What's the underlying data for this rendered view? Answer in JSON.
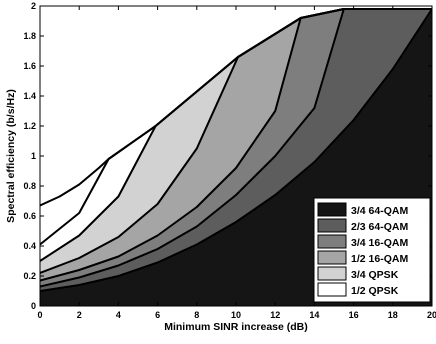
{
  "chart_data": {
    "type": "area",
    "xlabel": "Minimum SINR increase (dB)",
    "ylabel": "Spectral efficiency (b/s/Hz)",
    "xlim": [
      0,
      20
    ],
    "ylim": [
      0,
      2
    ],
    "x_ticks": [
      0,
      2,
      4,
      6,
      8,
      10,
      12,
      14,
      16,
      18,
      20
    ],
    "y_ticks": [
      0,
      0.2,
      0.4,
      0.6,
      0.8,
      1,
      1.2,
      1.4,
      1.6,
      1.8,
      2
    ],
    "grid": false,
    "legend_position": "bottom-right",
    "series": [
      {
        "name": "3/4 64-QAM",
        "color": "#151515",
        "points": [
          [
            0,
            0.1
          ],
          [
            2,
            0.14
          ],
          [
            4,
            0.2
          ],
          [
            6,
            0.29
          ],
          [
            8,
            0.41
          ],
          [
            10,
            0.56
          ],
          [
            12,
            0.74
          ],
          [
            14,
            0.96
          ],
          [
            16,
            1.24
          ],
          [
            18,
            1.58
          ],
          [
            20,
            1.98
          ]
        ]
      },
      {
        "name": "2/3 64-QAM",
        "color": "#5d5d5d",
        "points": [
          [
            0,
            0.13
          ],
          [
            2,
            0.19
          ],
          [
            4,
            0.27
          ],
          [
            6,
            0.38
          ],
          [
            8,
            0.53
          ],
          [
            10,
            0.74
          ],
          [
            12,
            1.0
          ],
          [
            14,
            1.32
          ],
          [
            15.5,
            1.98
          ],
          [
            20,
            1.98
          ]
        ]
      },
      {
        "name": "3/4 16-QAM",
        "color": "#7e7e7e",
        "points": [
          [
            0,
            0.17
          ],
          [
            2,
            0.24
          ],
          [
            4,
            0.33
          ],
          [
            6,
            0.47
          ],
          [
            8,
            0.66
          ],
          [
            10,
            0.92
          ],
          [
            12,
            1.3
          ],
          [
            13.3,
            1.92
          ],
          [
            15.5,
            1.98
          ],
          [
            20,
            1.98
          ]
        ]
      },
      {
        "name": "1/2 16-QAM",
        "color": "#a5a5a5",
        "points": [
          [
            0,
            0.22
          ],
          [
            2,
            0.32
          ],
          [
            4,
            0.46
          ],
          [
            6,
            0.68
          ],
          [
            8,
            1.05
          ],
          [
            10.1,
            1.66
          ],
          [
            13.3,
            1.92
          ],
          [
            15.5,
            1.98
          ],
          [
            20,
            1.98
          ]
        ]
      },
      {
        "name": "3/4 QPSK",
        "color": "#d2d2d2",
        "points": [
          [
            0,
            0.3
          ],
          [
            2,
            0.47
          ],
          [
            4,
            0.73
          ],
          [
            5.9,
            1.2
          ],
          [
            10.1,
            1.66
          ],
          [
            13.3,
            1.92
          ],
          [
            15.5,
            1.98
          ],
          [
            20,
            1.98
          ]
        ]
      },
      {
        "name": "1/2 QPSK",
        "color": "#ffffff",
        "points": [
          [
            0,
            0.41
          ],
          [
            2,
            0.62
          ],
          [
            3.5,
            0.98
          ],
          [
            5.9,
            1.2
          ],
          [
            10.1,
            1.66
          ],
          [
            13.3,
            1.92
          ],
          [
            15.5,
            1.98
          ],
          [
            20,
            1.98
          ]
        ]
      }
    ],
    "top_envelope": [
      [
        0,
        0.67
      ],
      [
        1,
        0.73
      ],
      [
        2,
        0.81
      ],
      [
        3,
        0.92
      ],
      [
        3.5,
        0.98
      ],
      [
        5.9,
        1.2
      ],
      [
        10.1,
        1.66
      ],
      [
        13.3,
        1.92
      ],
      [
        15.5,
        1.98
      ],
      [
        20,
        1.98
      ]
    ]
  }
}
